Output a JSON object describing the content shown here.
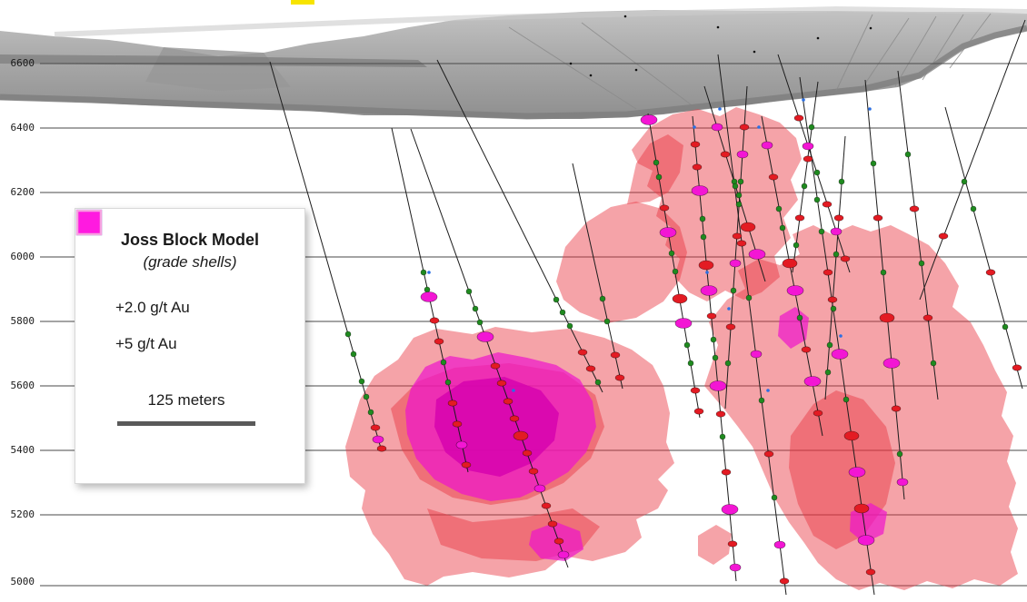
{
  "axis": {
    "labels": [
      "6600",
      "6400",
      "6200",
      "6000",
      "5800",
      "5600",
      "5400",
      "5200",
      "5000"
    ]
  },
  "legend": {
    "title": "Joss Block Model",
    "subtitle": "(grade shells)",
    "items": [
      {
        "label": "+2.0 g/t Au",
        "color": "#ee1c25",
        "border": "#4aa3d8"
      },
      {
        "label": "+5 g/t Au",
        "color": "#ff1ae0",
        "border": "#f6a3e0"
      }
    ],
    "scale_label": "125 meters",
    "scale_bar_color": "#595959"
  },
  "colors": {
    "shell_red": "#e8323e",
    "shell_magenta": "#ee14cc",
    "shell_magenta_deep": "#d400ae",
    "terrain_dark": "#757575",
    "gridline": "#4a4a4a",
    "drillhole": "#1c1c1c",
    "intercept_green": "#1f8a1f",
    "intercept_red": "#e31b23",
    "intercept_magenta": "#f316d4",
    "intercept_blue": "#2b6fe3",
    "surface_marker_yellow": "#f7e400"
  }
}
